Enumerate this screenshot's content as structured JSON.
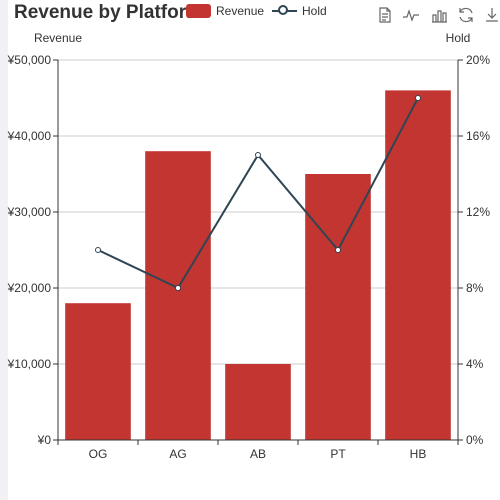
{
  "chart_data": {
    "type": "bar",
    "title": "Revenue by Platform",
    "categories": [
      "OG",
      "AG",
      "AB",
      "PT",
      "HB"
    ],
    "series": [
      {
        "name": "Revenue",
        "type": "bar",
        "axis": "left",
        "values": [
          18000,
          38000,
          10000,
          35000,
          46000
        ]
      },
      {
        "name": "Hold",
        "type": "line",
        "axis": "right",
        "values": [
          10,
          8,
          15,
          10,
          18
        ]
      }
    ],
    "y_left": {
      "label": "Revenue",
      "min": 0,
      "max": 50000,
      "ticks": [
        0,
        10000,
        20000,
        30000,
        40000,
        50000
      ],
      "tick_labels": [
        "¥0",
        "¥10,000",
        "¥20,000",
        "¥30,000",
        "¥40,000",
        "¥50,000"
      ]
    },
    "y_right": {
      "label": "Hold",
      "min": 0,
      "max": 20,
      "ticks": [
        0,
        4,
        8,
        12,
        16,
        20
      ],
      "tick_labels": [
        "0%",
        "4%",
        "8%",
        "12%",
        "16%",
        "20%"
      ]
    },
    "grid": true,
    "legend": "top-center",
    "colors": {
      "bar": "#c23531",
      "line": "#2f4554",
      "axis": "#333333",
      "grid": "#cccccc"
    }
  },
  "toolbox": [
    "data-view-icon",
    "line-chart-icon",
    "bar-chart-icon",
    "restore-icon",
    "save-image-icon"
  ]
}
